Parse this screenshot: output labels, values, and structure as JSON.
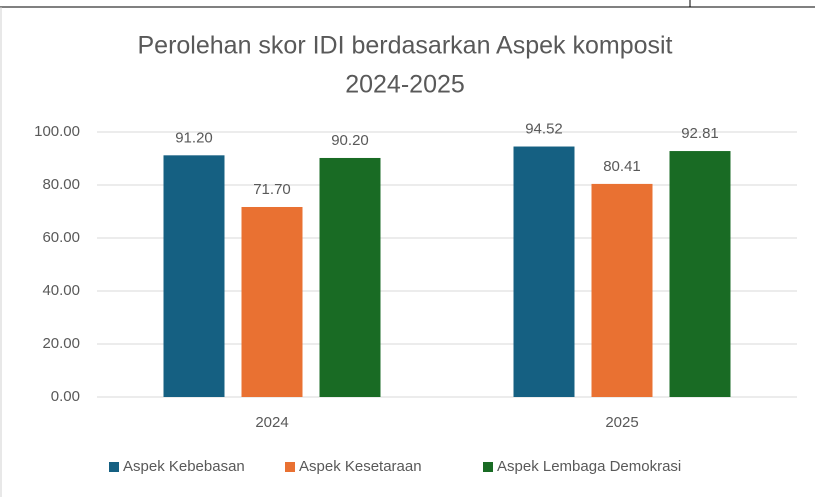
{
  "chart_data": {
    "type": "bar",
    "title": [
      "Perolehan skor IDI berdasarkan Aspek komposit",
      "2024-2025"
    ],
    "categories": [
      "2024",
      "2025"
    ],
    "series": [
      {
        "name": "Aspek Kebebasan",
        "color": "#156082",
        "values": [
          91.2,
          94.52
        ],
        "value_labels": [
          "91.20",
          "94.52"
        ]
      },
      {
        "name": "Aspek Kesetaraan",
        "color": "#e97132",
        "values": [
          71.7,
          80.41
        ],
        "value_labels": [
          "71.70",
          "80.41"
        ]
      },
      {
        "name": "Aspek Lembaga Demokrasi",
        "color": "#196b24",
        "values": [
          90.2,
          92.81
        ],
        "value_labels": [
          "90.20",
          "92.81"
        ]
      }
    ],
    "ylim": [
      0,
      100
    ],
    "yticks": [
      {
        "value": 0,
        "label": "0.00"
      },
      {
        "value": 20,
        "label": "20.00"
      },
      {
        "value": 40,
        "label": "40.00"
      },
      {
        "value": 60,
        "label": "60.00"
      },
      {
        "value": 80,
        "label": "80.00"
      },
      {
        "value": 100,
        "label": "100.00"
      }
    ],
    "grid": true,
    "legend": "bottom"
  }
}
